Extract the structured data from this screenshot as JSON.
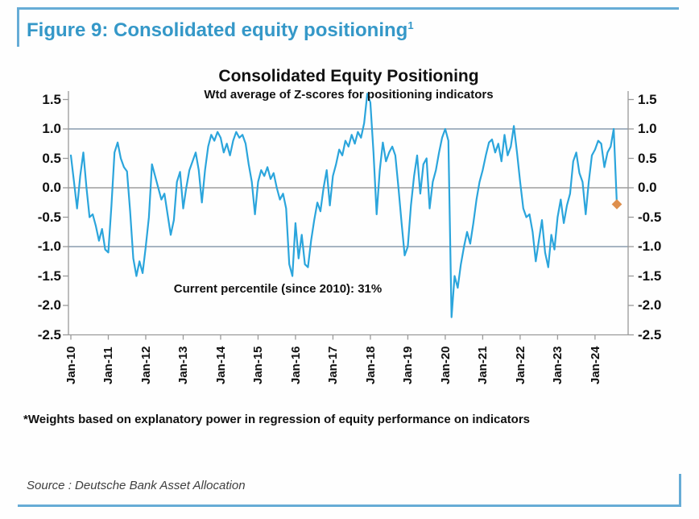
{
  "figure": {
    "title": "Figure 9: Consolidated equity positioning",
    "title_superscript": "1",
    "footnote": "*Weights based on explanatory power in regression of equity performance on indicators",
    "source": "Source : Deutsche Bank Asset Allocation"
  },
  "chart_data": {
    "type": "line",
    "title": "Consolidated Equity Positioning",
    "subtitle": "Wtd average of Z-scores for positioning indicators",
    "annotation": "Current percentile (since 2010): 31%",
    "ylabel": "Wtd average Z-score",
    "ylim": [
      -2.5,
      1.5
    ],
    "y_tick_labels": [
      "1.5",
      "1.0",
      "0.5",
      "0.0",
      "-0.5",
      "-1.0",
      "-1.5",
      "-2.0",
      "-2.5"
    ],
    "y_axis_sides": [
      "left",
      "right"
    ],
    "reference_lines": [
      1.0,
      0.0,
      -1.0
    ],
    "grid": "horizontal reference lines at +1, 0, -1 only",
    "legend_position": "none",
    "x_tick_labels": [
      "Jan-10",
      "Jan-11",
      "Jan-12",
      "Jan-13",
      "Jan-14",
      "Jan-15",
      "Jan-16",
      "Jan-17",
      "Jan-18",
      "Jan-19",
      "Jan-20",
      "Jan-21",
      "Jan-22",
      "Jan-23",
      "Jan-24"
    ],
    "series": [
      {
        "name": "Consolidated equity positioning (weighted Z-score)",
        "start": "Jan-2010",
        "frequency": "monthly",
        "values": [
          0.55,
          0.1,
          -0.35,
          0.2,
          0.6,
          0.0,
          -0.5,
          -0.45,
          -0.65,
          -0.9,
          -0.7,
          -1.05,
          -1.1,
          -0.3,
          0.6,
          0.77,
          0.5,
          0.35,
          0.28,
          -0.4,
          -1.2,
          -1.5,
          -1.25,
          -1.45,
          -1.0,
          -0.5,
          0.4,
          0.2,
          0.0,
          -0.2,
          -0.1,
          -0.45,
          -0.8,
          -0.55,
          0.1,
          0.27,
          -0.35,
          0.0,
          0.3,
          0.45,
          0.6,
          0.3,
          -0.25,
          0.3,
          0.7,
          0.9,
          0.8,
          0.95,
          0.85,
          0.6,
          0.75,
          0.55,
          0.8,
          0.95,
          0.85,
          0.9,
          0.75,
          0.4,
          0.1,
          -0.45,
          0.1,
          0.3,
          0.2,
          0.35,
          0.15,
          0.25,
          0.0,
          -0.2,
          -0.1,
          -0.35,
          -1.3,
          -1.5,
          -0.6,
          -1.2,
          -0.8,
          -1.3,
          -1.35,
          -0.9,
          -0.55,
          -0.25,
          -0.4,
          0.0,
          0.3,
          -0.3,
          0.2,
          0.4,
          0.65,
          0.55,
          0.8,
          0.7,
          0.9,
          0.75,
          0.95,
          0.85,
          1.1,
          1.6,
          1.45,
          0.6,
          -0.45,
          0.3,
          0.77,
          0.45,
          0.6,
          0.7,
          0.55,
          0.0,
          -0.6,
          -1.15,
          -1.0,
          -0.3,
          0.2,
          0.55,
          -0.1,
          0.4,
          0.5,
          -0.35,
          0.1,
          0.3,
          0.6,
          0.85,
          1.0,
          0.8,
          -2.2,
          -1.5,
          -1.7,
          -1.3,
          -1.0,
          -0.75,
          -0.95,
          -0.6,
          -0.2,
          0.1,
          0.3,
          0.55,
          0.77,
          0.82,
          0.6,
          0.75,
          0.45,
          0.9,
          0.55,
          0.7,
          1.05,
          0.6,
          0.1,
          -0.35,
          -0.5,
          -0.45,
          -0.75,
          -1.25,
          -0.9,
          -0.55,
          -1.1,
          -1.35,
          -0.8,
          -1.05,
          -0.5,
          -0.2,
          -0.6,
          -0.3,
          -0.1,
          0.45,
          0.6,
          0.25,
          0.1,
          -0.45,
          0.1,
          0.55,
          0.65,
          0.8,
          0.75,
          0.35,
          0.6,
          0.7,
          1.0,
          -0.28
        ]
      }
    ],
    "latest_point": {
      "value": -0.28,
      "marker": "orange-diamond"
    },
    "colors": {
      "line": "#2ba5dc",
      "marker": "#de8f4d",
      "reference_band_lines": "#72879f",
      "zero_line": "#8a8a8a",
      "axis": "#9a9a9a",
      "figure_title": "#3598c8",
      "frame_border": "#66acd6",
      "text": "#111111"
    }
  }
}
